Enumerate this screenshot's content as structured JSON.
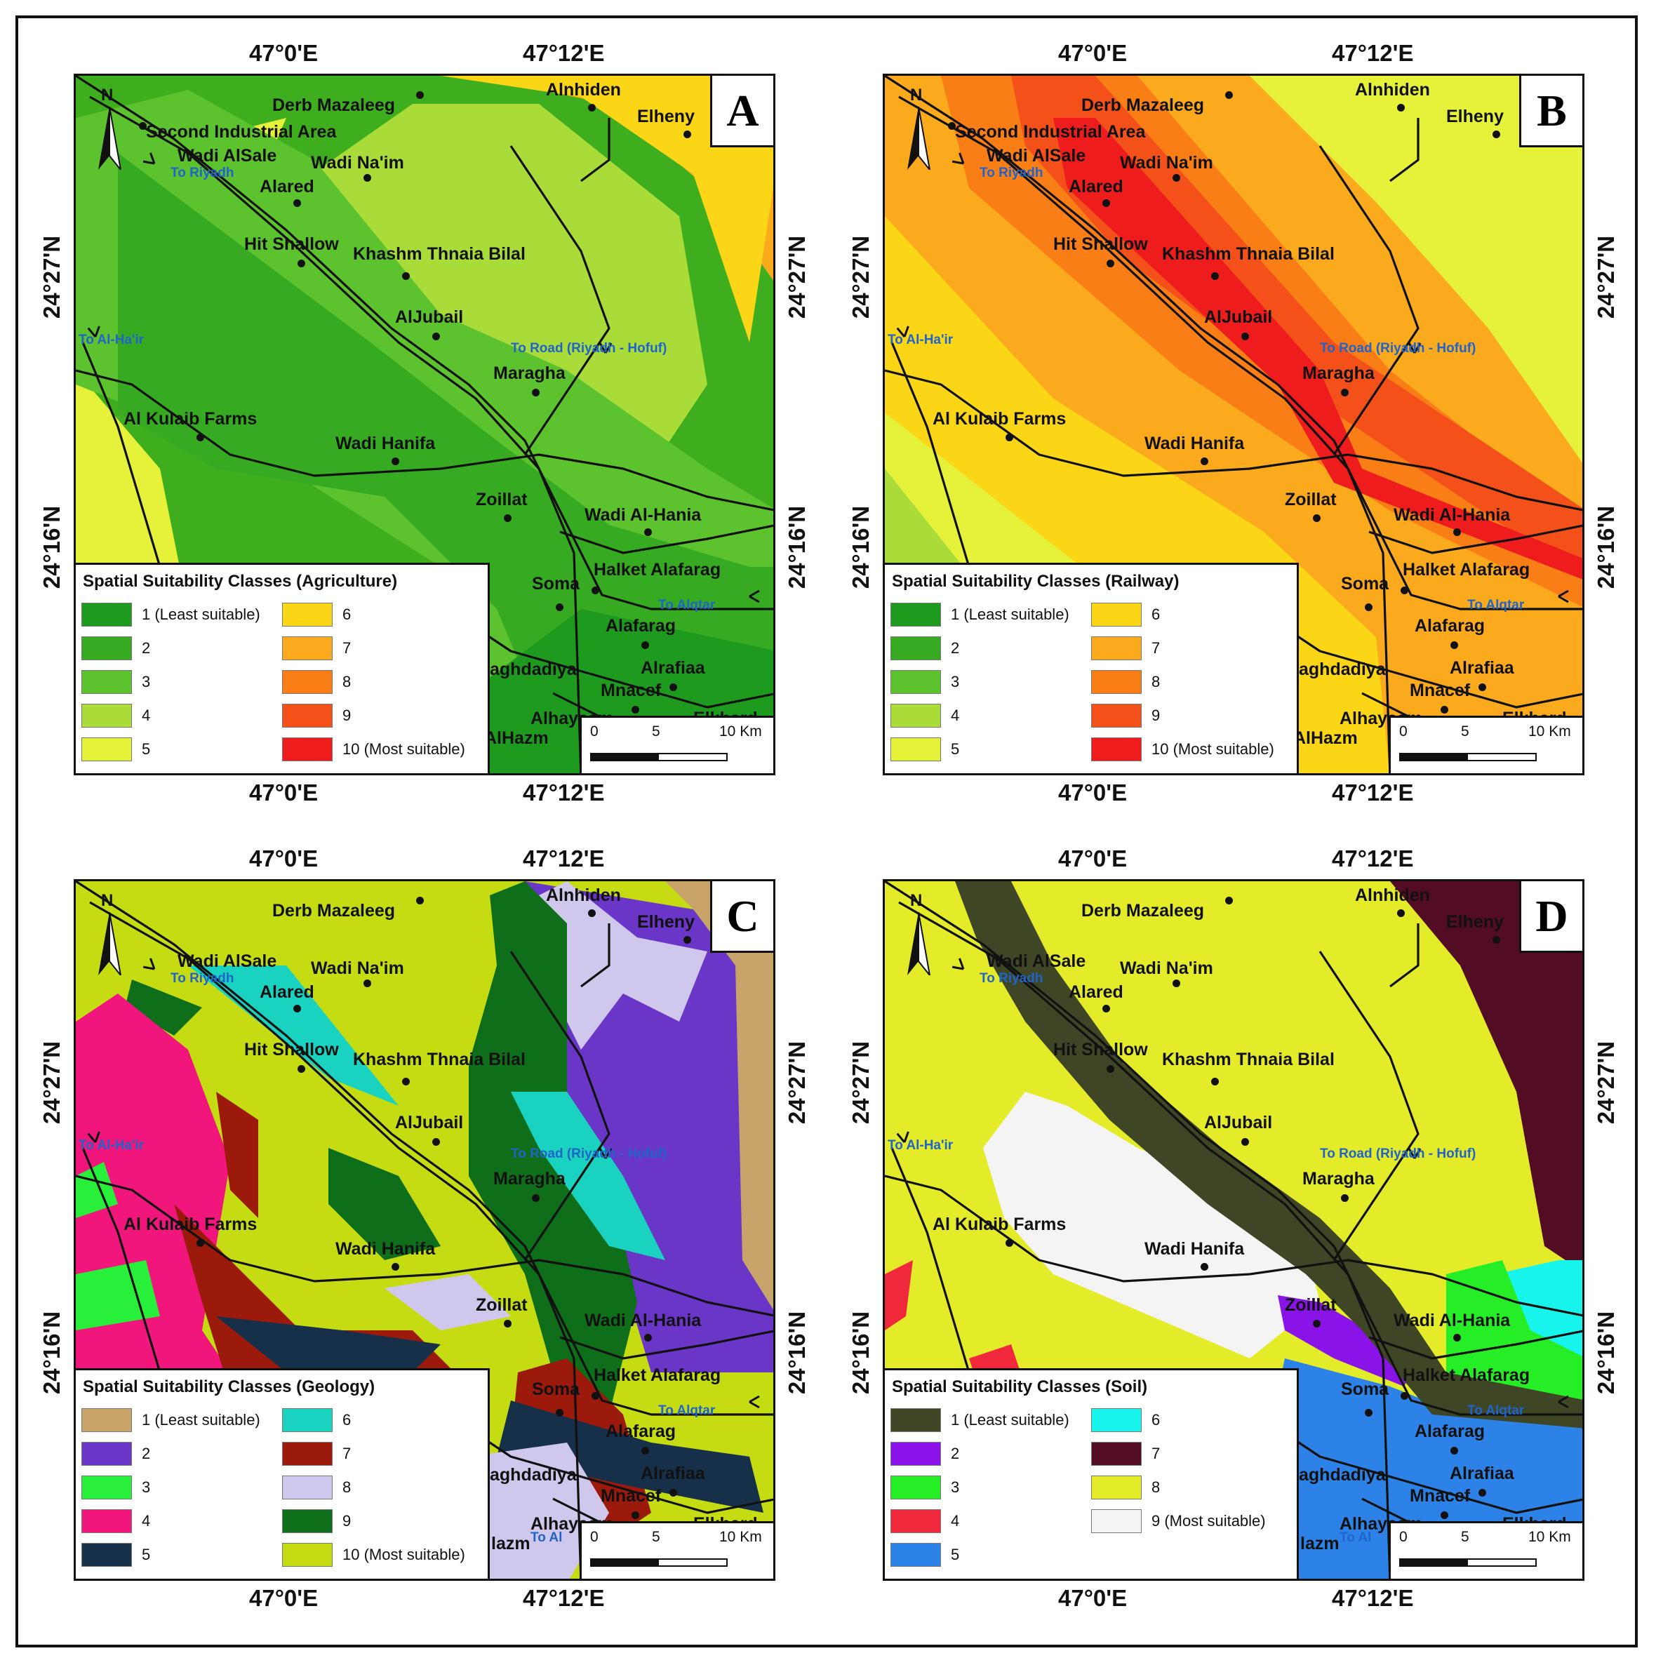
{
  "axes": {
    "lon_left": "47°0'E",
    "lon_right": "47°12'E",
    "lat_top": "24°27'N",
    "lat_bottom": "24°16'N"
  },
  "places": {
    "derb": "Derb Mazaleeg",
    "alnhiden": "Alnhiden",
    "elheny": "Elheny",
    "second": "Second Industrial Area",
    "wadialsale": "Wadi AlSale",
    "wadinaim": "Wadi Na'im",
    "alared": "Alared",
    "hit": "Hit Shallow",
    "khashm": "Khashm Thnaia Bilal",
    "aljubail": "AlJubail",
    "maragha": "Maragha",
    "kulaib": "Al Kulaib Farms",
    "wadihanifa": "Wadi Hanifa",
    "zoillat": "Zoillat",
    "wadialhania": "Wadi Al-Hania",
    "halket": "Halket Alafarag",
    "soma": "Soma",
    "alafarag": "Alafarag",
    "baghdadiya": "aghdadiya",
    "alrafiaa": "Alrafiaa",
    "mnacef": "Mnacef",
    "alhayasm": "Alhayasm",
    "alhazm": "AlHazm",
    "alhazm_cd": "lazm",
    "elkhard": "Elkhard"
  },
  "directions": {
    "riyadh": "To Riyadh",
    "alhair": "To Al-Ha'ir",
    "road": "To Road (Riyadh - Hofuf)",
    "alqtar": "To Alqtar",
    "alhazm_dir": "To Al"
  },
  "north_label": "N",
  "scalebar": {
    "t0": "0",
    "t5": "5",
    "t10": "10 Km"
  },
  "panels": [
    {
      "letter": "A",
      "legend_title": "Spatial Suitability Classes (Agriculture)",
      "background": "#3fae1e",
      "legend": [
        {
          "label": "1 (Least suitable)",
          "color": "#1e9a1e"
        },
        {
          "label": "2",
          "color": "#36ab22"
        },
        {
          "label": "3",
          "color": "#5cc22e"
        },
        {
          "label": "4",
          "color": "#a9dc38"
        },
        {
          "label": "5",
          "color": "#e6f23a"
        },
        {
          "label": "6",
          "color": "#fbd616"
        },
        {
          "label": "7",
          "color": "#fbaa1e"
        },
        {
          "label": "8",
          "color": "#f97e16"
        },
        {
          "label": "9",
          "color": "#f3501a"
        },
        {
          "label": "10 (Most suitable)",
          "color": "#ee1c1c"
        }
      ]
    },
    {
      "letter": "B",
      "legend_title": "Spatial Suitability Classes (Railway)",
      "background": "#fbaa1e",
      "legend": [
        {
          "label": "1 (Least suitable)",
          "color": "#1e9a1e"
        },
        {
          "label": "2",
          "color": "#36ab22"
        },
        {
          "label": "3",
          "color": "#5cc22e"
        },
        {
          "label": "4",
          "color": "#a9dc38"
        },
        {
          "label": "5",
          "color": "#e6f23a"
        },
        {
          "label": "6",
          "color": "#fbd616"
        },
        {
          "label": "7",
          "color": "#fbaa1e"
        },
        {
          "label": "8",
          "color": "#f97e16"
        },
        {
          "label": "9",
          "color": "#f3501a"
        },
        {
          "label": "10 (Most suitable)",
          "color": "#ee1c1c"
        }
      ]
    },
    {
      "letter": "C",
      "legend_title": "Spatial Suitability Classes (Geology)",
      "background": "#c6dc12",
      "legend": [
        {
          "label": "1 (Least suitable)",
          "color": "#c8a36a"
        },
        {
          "label": "2",
          "color": "#6a36c8"
        },
        {
          "label": "3",
          "color": "#28f03a"
        },
        {
          "label": "4",
          "color": "#f0167c"
        },
        {
          "label": "5",
          "color": "#16304a"
        },
        {
          "label": "6",
          "color": "#1ad2c0"
        },
        {
          "label": "7",
          "color": "#9c1a0c"
        },
        {
          "label": "8",
          "color": "#cfc8ec"
        },
        {
          "label": "9",
          "color": "#0e6e1a"
        },
        {
          "label": "10 (Most suitable)",
          "color": "#c6dc12"
        }
      ]
    },
    {
      "letter": "D",
      "legend_title": "Spatial Suitability Classes (Soil)",
      "background": "#e4ec2a",
      "legend": [
        {
          "label": "1 (Least suitable)",
          "color": "#3f4626"
        },
        {
          "label": "2",
          "color": "#8a14e8"
        },
        {
          "label": "3",
          "color": "#26ee26"
        },
        {
          "label": "4",
          "color": "#f0283c"
        },
        {
          "label": "5",
          "color": "#2c82e6"
        },
        {
          "label": "6",
          "color": "#16f4ec"
        },
        {
          "label": "7",
          "color": "#520c24"
        },
        {
          "label": "8",
          "color": "#e4ec2a"
        },
        {
          "label": "9 (Most suitable)",
          "color": "#f4f4f4"
        }
      ]
    }
  ]
}
